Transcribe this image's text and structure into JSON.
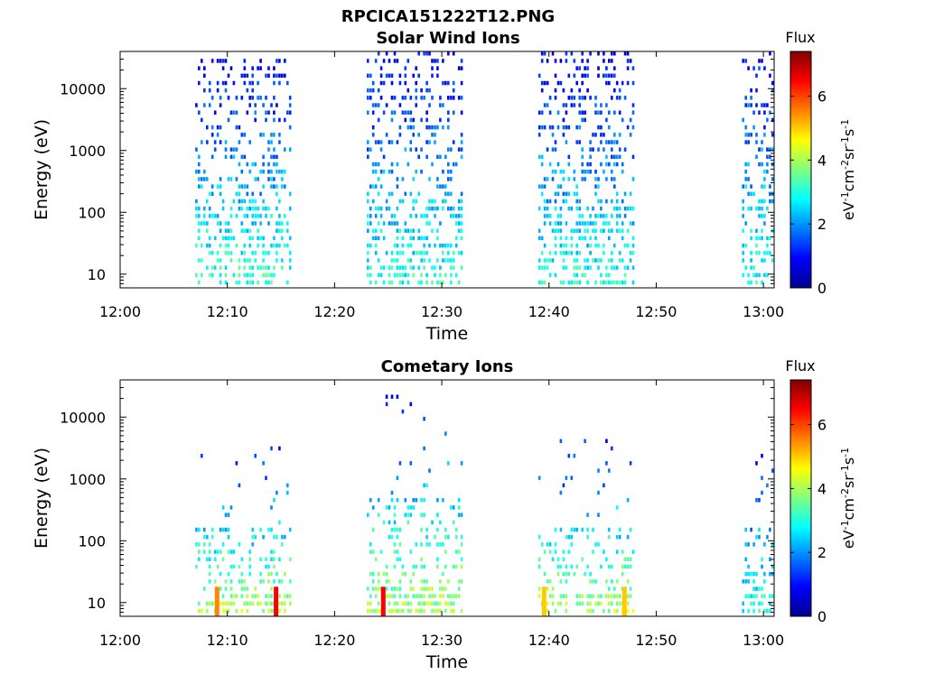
{
  "figure_title": "RPCICA151222T12.PNG",
  "colorbar": {
    "title": "Flux",
    "unit_base": "eV",
    "unit_parts": [
      {
        "t": "eV",
        "sup": false
      },
      {
        "t": "-1",
        "sup": true
      },
      {
        "t": "cm",
        "sup": false
      },
      {
        "t": "-2",
        "sup": true
      },
      {
        "t": "sr",
        "sup": false
      },
      {
        "t": "-1",
        "sup": true
      },
      {
        "t": "s",
        "sup": false
      },
      {
        "t": "-1",
        "sup": true
      }
    ],
    "range": [
      0,
      7.4
    ],
    "ticks": [
      "0",
      "2",
      "4",
      "6"
    ],
    "colormap": "jet"
  },
  "chart_data": [
    {
      "type": "heatmap",
      "title": "Solar Wind Ions",
      "xlabel": "Time",
      "ylabel": "Energy (eV)",
      "x_tick_labels": [
        "12:00",
        "12:10",
        "12:20",
        "12:30",
        "12:40",
        "12:50",
        "13:00"
      ],
      "y_tick_labels": [
        "10",
        "100",
        "1000",
        "10000"
      ],
      "x_range_minutes": [
        0,
        61
      ],
      "y_range_eV": [
        6,
        40000
      ],
      "y_scale": "log",
      "color_range": [
        0,
        7.4
      ],
      "bursts": [
        {
          "start": "12:07",
          "end": "12:16",
          "emax": 30000,
          "low_energy_flux": 3.2,
          "high_energy_flux": 0.8
        },
        {
          "start": "12:23",
          "end": "12:32",
          "emax": 38000,
          "low_energy_flux": 3.0,
          "high_energy_flux": 0.8
        },
        {
          "start": "12:39",
          "end": "12:48",
          "emax": 33000,
          "low_energy_flux": 3.0,
          "high_energy_flux": 0.8
        },
        {
          "start": "12:58",
          "end": "13:01",
          "emax": 36000,
          "low_energy_flux": 3.0,
          "high_energy_flux": 0.9
        }
      ]
    },
    {
      "type": "heatmap",
      "title": "Cometary Ions",
      "xlabel": "Time",
      "ylabel": "Energy (eV)",
      "x_tick_labels": [
        "12:00",
        "12:10",
        "12:20",
        "12:30",
        "12:40",
        "12:50",
        "13:00"
      ],
      "y_tick_labels": [
        "10",
        "100",
        "1000",
        "10000"
      ],
      "x_range_minutes": [
        0,
        61
      ],
      "y_range_eV": [
        6,
        40000
      ],
      "y_scale": "log",
      "color_range": [
        0,
        7.4
      ],
      "bursts": [
        {
          "start": "12:07",
          "end": "12:16",
          "emax": 3000,
          "low_energy_flux": 4.0,
          "high_energy_flux": 1.0
        },
        {
          "start": "12:23",
          "end": "12:32",
          "emax": 24000,
          "low_energy_flux": 4.0,
          "high_energy_flux": 1.0
        },
        {
          "start": "12:39",
          "end": "12:48",
          "emax": 4000,
          "low_energy_flux": 4.0,
          "high_energy_flux": 1.0
        },
        {
          "start": "12:58",
          "end": "13:01",
          "emax": 3000,
          "low_energy_flux": 3.0,
          "high_energy_flux": 1.0
        }
      ],
      "peaks": [
        {
          "time": "12:09",
          "energy": 10,
          "flux": 5.5
        },
        {
          "time": "12:14.5",
          "energy": 10,
          "flux": 6.5
        },
        {
          "time": "12:24.5",
          "energy": 10,
          "flux": 6.5
        },
        {
          "time": "12:39.5",
          "energy": 10,
          "flux": 5.0
        },
        {
          "time": "12:47",
          "energy": 10,
          "flux": 5.0
        }
      ]
    }
  ]
}
